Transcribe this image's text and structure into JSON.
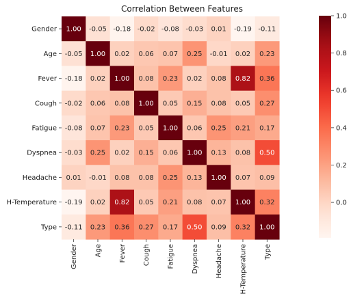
{
  "chart_data": {
    "type": "heatmap",
    "title": "Correlation Between Features",
    "xlabel": "",
    "ylabel": "",
    "labels": [
      "Gender",
      "Age",
      "Fever",
      "Cough",
      "Fatigue",
      "Dyspnea",
      "Headache",
      "H-Temperature",
      "Type"
    ],
    "values": [
      [
        1.0,
        -0.05,
        -0.18,
        -0.02,
        -0.08,
        -0.03,
        0.01,
        -0.19,
        -0.11
      ],
      [
        -0.05,
        1.0,
        0.02,
        0.06,
        0.07,
        0.25,
        -0.01,
        0.02,
        0.23
      ],
      [
        -0.18,
        0.02,
        1.0,
        0.08,
        0.23,
        0.02,
        0.08,
        0.82,
        0.36
      ],
      [
        -0.02,
        0.06,
        0.08,
        1.0,
        0.05,
        0.15,
        0.08,
        0.05,
        0.27
      ],
      [
        -0.08,
        0.07,
        0.23,
        0.05,
        1.0,
        0.06,
        0.25,
        0.21,
        0.17
      ],
      [
        -0.03,
        0.25,
        0.02,
        0.15,
        0.06,
        1.0,
        0.13,
        0.08,
        0.5
      ],
      [
        0.01,
        -0.01,
        0.08,
        0.08,
        0.25,
        0.13,
        1.0,
        0.07,
        0.09
      ],
      [
        -0.19,
        0.02,
        0.82,
        0.05,
        0.21,
        0.08,
        0.07,
        1.0,
        0.32
      ],
      [
        -0.11,
        0.23,
        0.36,
        0.27,
        0.17,
        0.5,
        0.09,
        0.32,
        1.0
      ]
    ],
    "annotation_format": "0.00",
    "colormap": "Reds",
    "colormap_stops": [
      "#fff5f0",
      "#fee0d2",
      "#fcbba1",
      "#fc9272",
      "#fb6a4a",
      "#ef3b2c",
      "#cb181d",
      "#a50f15",
      "#67000d"
    ],
    "vmin": -0.19,
    "vmax": 1.0,
    "colorbar_ticks": [
      0.0,
      0.2,
      0.4,
      0.6,
      0.8,
      1.0
    ],
    "colorbar_tick_labels": [
      "0.0",
      "0.2",
      "0.4",
      "0.6",
      "0.8",
      "1.0"
    ],
    "x_tick_rotation": "vertical",
    "grid": false,
    "legend": "colorbar-right"
  }
}
